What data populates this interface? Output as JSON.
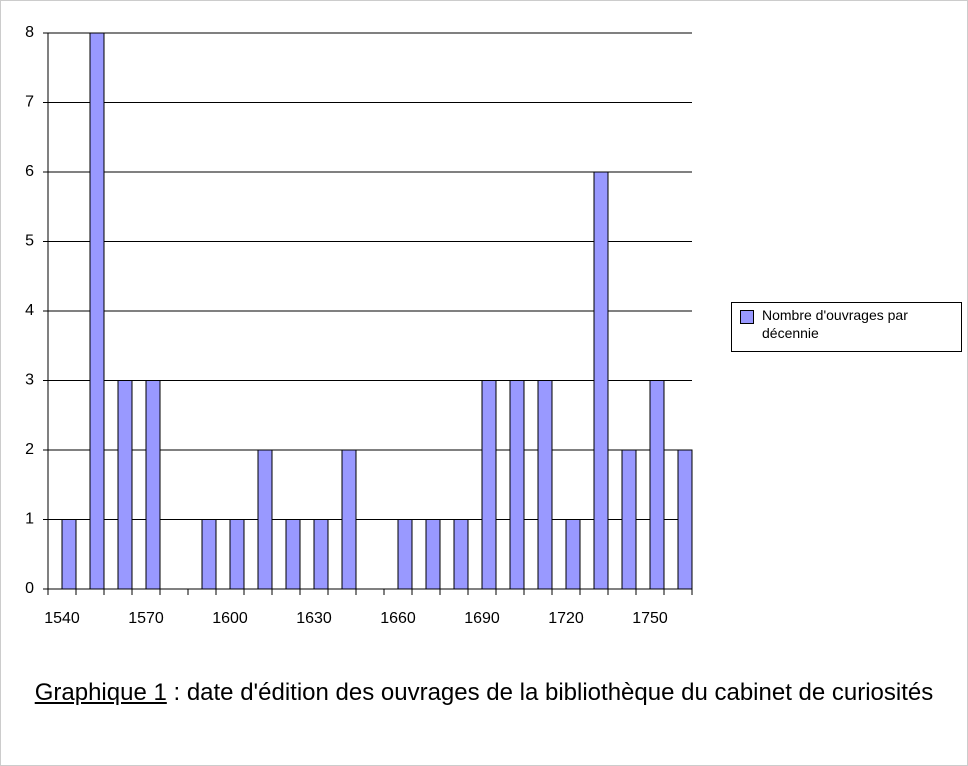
{
  "chart_data": {
    "type": "bar",
    "categories": [
      "1540",
      null,
      null,
      "1570",
      null,
      null,
      "1600",
      null,
      null,
      "1630",
      null,
      null,
      "1660",
      null,
      null,
      "1690",
      null,
      null,
      "1720",
      null,
      null,
      "1750",
      null
    ],
    "series": [
      {
        "name": "Nombre d'ouvrages par décennie",
        "color": "#9999ff",
        "values": [
          1,
          8,
          3,
          3,
          0,
          1,
          1,
          2,
          1,
          1,
          2,
          0,
          1,
          1,
          1,
          3,
          3,
          3,
          1,
          6,
          2,
          3,
          2
        ]
      }
    ],
    "ylim": [
      0,
      8
    ],
    "yticks": [
      0,
      1,
      2,
      3,
      4,
      5,
      6,
      7,
      8
    ],
    "grid": true,
    "legend": "right",
    "caption_label": "Graphique 1",
    "caption_text": " : date d'édition des ouvrages de la bibliothèque du cabinet de curiosités"
  }
}
